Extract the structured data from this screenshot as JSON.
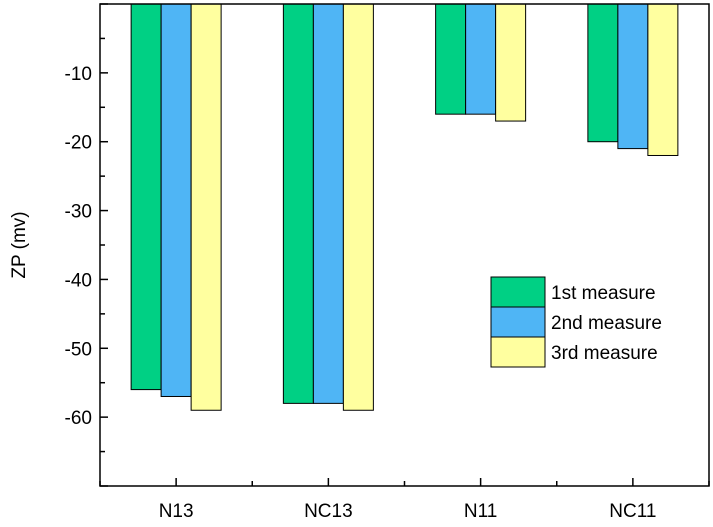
{
  "chart_data": {
    "type": "bar",
    "title": "",
    "xlabel": "",
    "ylabel": "ZP (mv)",
    "categories": [
      "N13",
      "NC13",
      "N11",
      "NC11"
    ],
    "series": [
      {
        "name": "1st measure",
        "color": "#00d084",
        "values": [
          -56,
          -58,
          -16,
          -20
        ]
      },
      {
        "name": "2nd measure",
        "color": "#4fb5f5",
        "values": [
          -57,
          -58,
          -16,
          -21
        ]
      },
      {
        "name": "3rd measure",
        "color": "#ffff9f",
        "values": [
          -59,
          -59,
          -17,
          -22
        ]
      }
    ],
    "ylim": [
      -70,
      0
    ],
    "yticks": [
      -10,
      -20,
      -30,
      -40,
      -50,
      -60
    ],
    "ytick_labels": [
      "-10",
      "-20",
      "-30",
      "-40",
      "-50",
      "-60"
    ],
    "legend_position": "right-middle",
    "grid": false
  }
}
